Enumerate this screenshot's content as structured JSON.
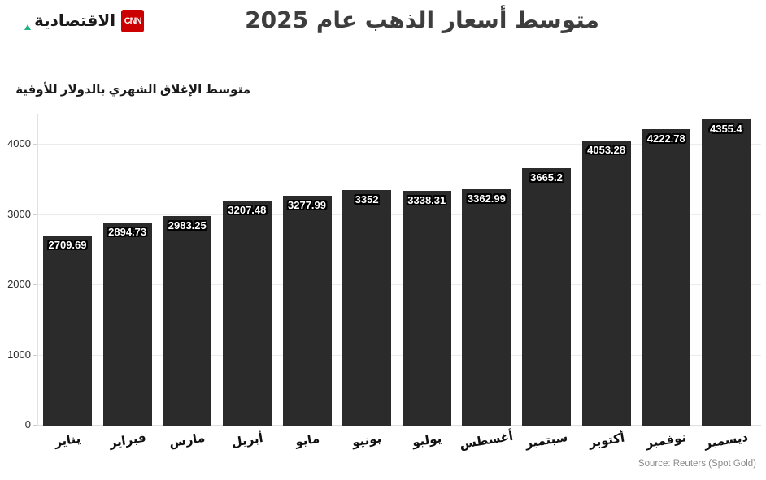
{
  "header": {
    "brand": {
      "name_ar": "الاقتصادية",
      "cnn": "CNN"
    },
    "title": "متوسط أسعار الذهب عام 2025"
  },
  "chart_data": {
    "type": "bar",
    "title": "متوسط أسعار الذهب عام 2025",
    "ylabel": "متوسط الإغلاق الشهري بالدولار للأوقية",
    "categories": [
      "يناير",
      "فبراير",
      "مارس",
      "أبريل",
      "مايو",
      "يونيو",
      "يوليو",
      "أغسطس",
      "سبتمبر",
      "أكتوبر",
      "نوفمبر",
      "ديسمبر"
    ],
    "values": [
      2709.69,
      2894.73,
      2983.25,
      3207.48,
      3277.99,
      3352,
      3338.31,
      3362.99,
      3665.2,
      4053.28,
      4222.78,
      4355.4
    ],
    "value_labels": [
      "2709.69",
      "2894.73",
      "2983.25",
      "3207.48",
      "3277.99",
      "3352",
      "3338.31",
      "3362.99",
      "3665.2",
      "4053.28",
      "4222.78",
      "4355.4"
    ],
    "y_ticks": [
      0,
      1000,
      2000,
      3000,
      4000
    ],
    "y_tick_labels": [
      "0",
      "1000",
      "2000",
      "3000",
      "4000"
    ],
    "ylim": [
      0,
      4440
    ],
    "grid": true,
    "legend": "none",
    "bar_color": "#2b2b2b"
  },
  "footer": {
    "source": "Source: Reuters (Spot Gold)"
  },
  "colors": {
    "cnn_red": "#cc0000",
    "brand_green": "#1db584",
    "bar": "#2b2b2b",
    "grid": "#ececec",
    "title_text": "#3d3d3d",
    "source_text": "#8a8a8a"
  }
}
